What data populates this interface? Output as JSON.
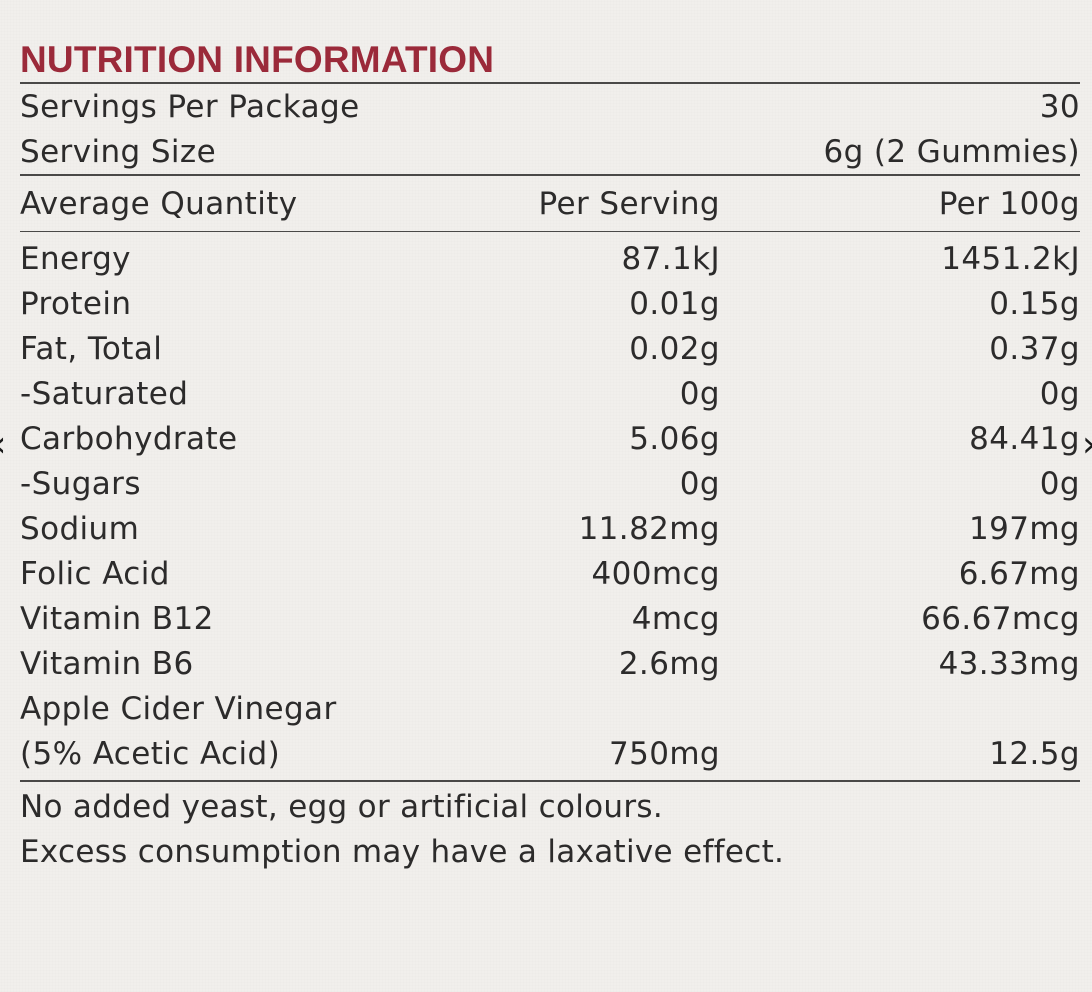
{
  "colors": {
    "title": "#9b2a3a",
    "text": "#2c2b2b",
    "rule": "#4a4948",
    "background": "#f1efec"
  },
  "panel": {
    "title": "NUTRITION INFORMATION",
    "servings_label": "Servings Per Package",
    "servings_value": "30",
    "serving_size_label": "Serving Size",
    "serving_size_value": "6g (2 Gummies)",
    "header": {
      "col1": "Average Quantity",
      "col2": "Per Serving",
      "col3": "Per 100g"
    },
    "rows": [
      {
        "name": "Energy",
        "per_serving": "87.1kJ",
        "per_100g": "1451.2kJ"
      },
      {
        "name": "Protein",
        "per_serving": "0.01g",
        "per_100g": "0.15g"
      },
      {
        "name": "Fat, Total",
        "per_serving": "0.02g",
        "per_100g": "0.37g"
      },
      {
        "name": "-Saturated",
        "per_serving": "0g",
        "per_100g": "0g"
      },
      {
        "name": "Carbohydrate",
        "per_serving": "5.06g",
        "per_100g": "84.41g"
      },
      {
        "name": "-Sugars",
        "per_serving": "0g",
        "per_100g": "0g"
      },
      {
        "name": "Sodium",
        "per_serving": "11.82mg",
        "per_100g": "197mg"
      },
      {
        "name": "Folic Acid",
        "per_serving": "400mcg",
        "per_100g": "6.67mg"
      },
      {
        "name": "Vitamin B12",
        "per_serving": "4mcg",
        "per_100g": "66.67mcg"
      },
      {
        "name": "Vitamin B6",
        "per_serving": "2.6mg",
        "per_100g": "43.33mg"
      },
      {
        "name": "Apple Cider Vinegar",
        "per_serving": "",
        "per_100g": ""
      },
      {
        "name": "(5% Acetic Acid)",
        "per_serving": "750mg",
        "per_100g": "12.5g"
      }
    ],
    "notes": [
      "No added yeast, egg or artificial colours.",
      "Excess consumption may have a laxative effect."
    ]
  },
  "nav": {
    "prev_icon": "chevron-left-icon",
    "next_icon": "chevron-right-icon",
    "prev_glyph": "‹",
    "next_glyph": "›"
  }
}
